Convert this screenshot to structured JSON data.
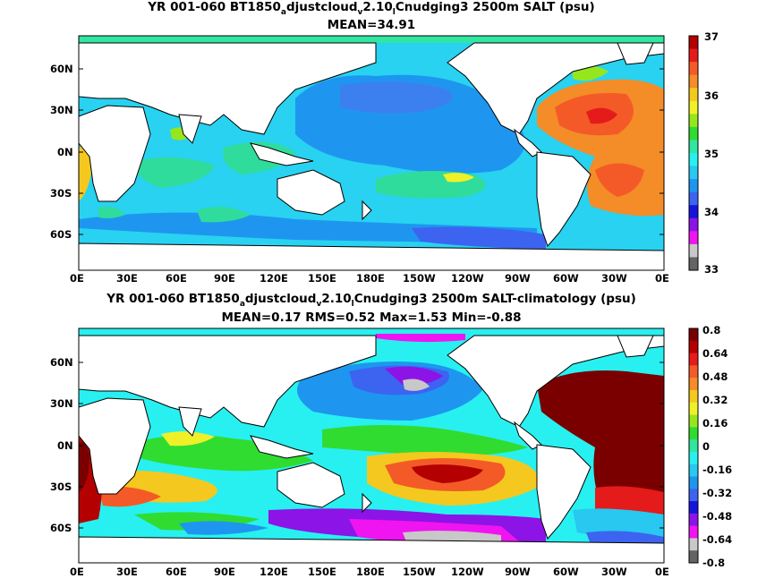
{
  "panel1": {
    "title_parts": [
      "YR 001-060 BT1850",
      "a",
      "djustcloud",
      "v",
      "2.10",
      "l",
      "Cnudging3 2500m SALT (psu)"
    ],
    "subtitle": "MEAN=34.91",
    "lat_labels": [
      "60N",
      "30N",
      "0N",
      "30S",
      "60S"
    ],
    "lon_labels": [
      "0E",
      "30E",
      "60E",
      "90E",
      "120E",
      "150E",
      "180E",
      "150W",
      "120W",
      "90W",
      "60W",
      "30W",
      "0E"
    ],
    "colorbar_labels": [
      "37",
      "36",
      "35",
      "34",
      "33"
    ],
    "colorbar_colors": [
      "#b40000",
      "#e51a1a",
      "#f45a28",
      "#f48c28",
      "#f4c81e",
      "#f0f028",
      "#96e61e",
      "#30dc30",
      "#30e6a0",
      "#28f0f0",
      "#28c8f0",
      "#1e96f0",
      "#3c64f0",
      "#1414dc",
      "#8c14e6",
      "#f014f0",
      "#c8c8c8",
      "#646464"
    ]
  },
  "panel2": {
    "title_parts": [
      "YR 001-060 BT1850",
      "a",
      "djustcloud",
      "v",
      "2.10",
      "l",
      "Cnudging3 2500m SALT-climatology (psu)"
    ],
    "subtitle": "MEAN=0.17   RMS=0.52   Max=1.53   Min=-0.88",
    "lat_labels": [
      "60N",
      "30N",
      "0N",
      "30S",
      "60S"
    ],
    "lon_labels": [
      "0E",
      "30E",
      "60E",
      "90E",
      "120E",
      "150E",
      "180E",
      "150W",
      "120W",
      "90W",
      "60W",
      "30W",
      "0E"
    ],
    "colorbar_labels": [
      "0.8",
      "0.64",
      "0.48",
      "0.32",
      "0.16",
      "0",
      "-0.16",
      "-0.32",
      "-0.48",
      "-0.64",
      "-0.8"
    ],
    "colorbar_colors": [
      "#7a0000",
      "#b40000",
      "#e51a1a",
      "#f45a28",
      "#f48c28",
      "#f4c81e",
      "#f0f028",
      "#96e61e",
      "#30dc30",
      "#30e6a0",
      "#28f0f0",
      "#28c8f0",
      "#1e96f0",
      "#3c64f0",
      "#1414dc",
      "#8c14e6",
      "#f014f0",
      "#c8c8c8",
      "#646464"
    ]
  }
}
